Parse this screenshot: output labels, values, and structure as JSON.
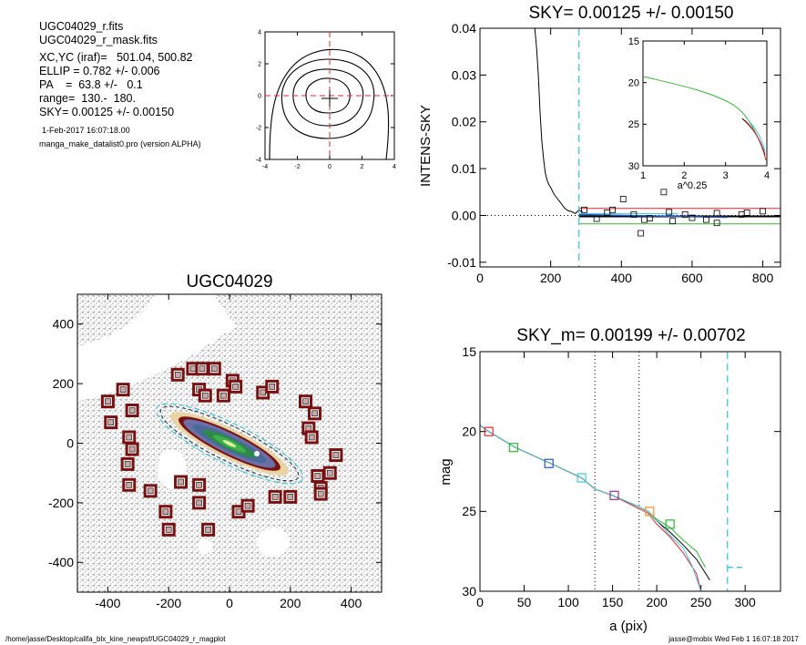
{
  "info": {
    "lines": [
      "UGC04029_r.fits",
      "UGC04029_r_mask.fits",
      "XC,YC (iraf)=   501.04, 500.82",
      "ELLIP = 0.782 +/- 0.006",
      "PA    =  63.8 +/-   0.1",
      "range=  130.-  180.",
      "SKY= 0.00125 +/- 0.00150"
    ],
    "date": "1-Feb-2017 16:07:18.00",
    "program": "manga_make_datalist0.pro (version ALPHA)"
  },
  "footer": {
    "path": "/home/jasse/Desktop/califa_blx_kine_newpsf/UGC04029_r_magplot",
    "stamp": "jasse@mobix  Wed Feb  1 16:07:18 2017"
  },
  "colors": {
    "red": "#e8262b",
    "black": "#000000",
    "green": "#2eb82e",
    "cyan": "#3fc8dc",
    "blue": "#2a55c8",
    "purple": "#9a2ea0",
    "orange": "#f08c2a",
    "dark_red": "#7a1010"
  },
  "chart_data": [
    {
      "id": "contour",
      "type": "contour",
      "xlim": [
        -4,
        4
      ],
      "ylim": [
        -4,
        4
      ],
      "xticks": [
        "-4",
        "-2",
        "0",
        "2",
        "4"
      ],
      "yticks": [
        "-4",
        "-2",
        "0",
        "2",
        "4"
      ]
    },
    {
      "id": "sky",
      "type": "line",
      "title": "SKY= 0.00125 +/- 0.00150",
      "ylabel": "INTENS-SKY",
      "xlim": [
        0,
        850
      ],
      "ylim": [
        -0.011,
        0.04
      ],
      "xticks": [
        "0",
        "200",
        "400",
        "600",
        "800"
      ],
      "yticks": [
        "-0.01",
        "0.00",
        "0.01",
        "0.02",
        "0.03",
        "0.04"
      ],
      "profile_x": [
        155,
        160,
        165,
        170,
        175,
        180,
        185,
        190,
        195,
        200,
        210,
        220,
        230,
        240,
        250,
        260,
        270,
        280,
        290
      ],
      "profile_y": [
        0.04,
        0.036,
        0.03,
        0.022,
        0.016,
        0.012,
        0.009,
        0.0075,
        0.0066,
        0.006,
        0.0045,
        0.0035,
        0.0025,
        0.0015,
        0.001,
        0.0008,
        0.0004,
        0.0012,
        0.0007
      ],
      "squares": [
        [
          295,
          0.0012
        ],
        [
          330,
          -0.0007
        ],
        [
          360,
          0.0006
        ],
        [
          375,
          0.0012
        ],
        [
          405,
          0.0035
        ],
        [
          435,
          0.0002
        ],
        [
          455,
          -0.0038
        ],
        [
          465,
          -0.0009
        ],
        [
          480,
          -0.0006
        ],
        [
          520,
          0.005
        ],
        [
          535,
          0.0007
        ],
        [
          545,
          -0.0012
        ],
        [
          580,
          0.0002
        ],
        [
          600,
          -0.0005
        ],
        [
          640,
          -0.0009
        ],
        [
          670,
          -0.0016
        ],
        [
          670,
          0.0005
        ],
        [
          740,
          0.0002
        ],
        [
          755,
          0.0006
        ],
        [
          800,
          0.0009
        ]
      ],
      "sky_range": [
        280,
        850
      ],
      "sky_level": 0.00125,
      "sky_upper": 0.0015,
      "sky_lower": -0.0018,
      "vline_x": 280,
      "inset": {
        "xlabel": "a^0.25",
        "xlim": [
          1,
          4
        ],
        "ylim": [
          15,
          30
        ],
        "xticks": [
          "1",
          "2",
          "3",
          "4"
        ],
        "yticks": [
          "15",
          "20",
          "25",
          "30"
        ]
      }
    },
    {
      "id": "image",
      "type": "image",
      "title": "UGC04029",
      "xlim": [
        -500,
        500
      ],
      "ylim": [
        -500,
        500
      ],
      "xticks": [
        "-400",
        "-200",
        "0",
        "200",
        "400"
      ],
      "yticks": [
        "-400",
        "-200",
        "0",
        "200",
        "400"
      ],
      "boxes": [
        [
          -400,
          140
        ],
        [
          -390,
          70
        ],
        [
          -350,
          180
        ],
        [
          -320,
          110
        ],
        [
          -330,
          20
        ],
        [
          -320,
          -20
        ],
        [
          -335,
          -70
        ],
        [
          -330,
          -140
        ],
        [
          -260,
          -160
        ],
        [
          -210,
          -230
        ],
        [
          -200,
          -290
        ],
        [
          -170,
          230
        ],
        [
          -160,
          -130
        ],
        [
          -120,
          250
        ],
        [
          -100,
          180
        ],
        [
          -90,
          250
        ],
        [
          -100,
          -140
        ],
        [
          -100,
          -200
        ],
        [
          -80,
          160
        ],
        [
          -50,
          250
        ],
        [
          -70,
          -290
        ],
        [
          -20,
          160
        ],
        [
          10,
          210
        ],
        [
          20,
          190
        ],
        [
          30,
          -230
        ],
        [
          60,
          -210
        ],
        [
          110,
          170
        ],
        [
          140,
          190
        ],
        [
          150,
          -180
        ],
        [
          200,
          -180
        ],
        [
          250,
          140
        ],
        [
          260,
          50
        ],
        [
          280,
          100
        ],
        [
          270,
          20
        ],
        [
          290,
          -110
        ],
        [
          300,
          -150
        ],
        [
          300,
          -170
        ],
        [
          330,
          -100
        ],
        [
          350,
          -40
        ]
      ],
      "ellipse": {
        "xc": 0,
        "yc": 0,
        "a": 250,
        "ellip": 0.782,
        "pa": 63.8
      }
    },
    {
      "id": "mag",
      "type": "line",
      "title": "SKY_m=  0.00199 +/- 0.00702",
      "xlabel": "a (pix)",
      "ylabel": "mag",
      "xlim": [
        0,
        340
      ],
      "ylim": [
        15,
        30
      ],
      "xticks": [
        "0",
        "50",
        "100",
        "150",
        "200",
        "250",
        "300"
      ],
      "yticks": [
        "15",
        "20",
        "25",
        "30"
      ],
      "range_lines": [
        130,
        180
      ],
      "vline_x": 280,
      "series": [
        {
          "color": "green",
          "x": [
            0,
            10,
            40,
            80,
            115,
            130,
            150,
            175,
            190,
            200,
            215,
            230,
            245,
            255
          ],
          "y": [
            19.6,
            20.0,
            21.0,
            22.0,
            22.9,
            23.6,
            24.0,
            24.6,
            25.0,
            25.5,
            26.0,
            26.8,
            27.5,
            28.5
          ]
        },
        {
          "color": "black",
          "x": [
            0,
            10,
            40,
            80,
            115,
            130,
            150,
            175,
            190,
            200,
            215,
            230,
            245,
            260
          ],
          "y": [
            19.6,
            20.0,
            21.0,
            22.0,
            22.9,
            23.6,
            24.0,
            24.6,
            25.0,
            25.6,
            26.3,
            27.1,
            28.0,
            29.3
          ]
        },
        {
          "color": "red",
          "x": [
            0,
            10,
            40,
            80,
            115,
            130,
            150,
            175,
            190,
            200,
            215,
            230,
            245,
            250
          ],
          "y": [
            19.6,
            20.0,
            21.0,
            22.0,
            22.9,
            23.6,
            24.0,
            24.7,
            25.1,
            25.8,
            26.6,
            27.6,
            28.9,
            30.0
          ]
        },
        {
          "color": "cyan",
          "x": [
            0,
            10,
            40,
            80,
            115,
            130,
            150,
            175,
            190,
            200,
            215,
            230,
            240,
            250
          ],
          "y": [
            19.6,
            20.0,
            21.0,
            22.0,
            22.9,
            23.6,
            24.0,
            24.6,
            25.0,
            25.6,
            26.5,
            27.3,
            28.4,
            30.0
          ]
        }
      ],
      "markers": [
        {
          "color": "red",
          "x": 10,
          "y": 20.0
        },
        {
          "color": "green",
          "x": 38,
          "y": 21.0
        },
        {
          "color": "blue",
          "x": 78,
          "y": 22.0
        },
        {
          "color": "cyan",
          "x": 115,
          "y": 22.9
        },
        {
          "color": "purple",
          "x": 152,
          "y": 24.0
        },
        {
          "color": "orange",
          "x": 192,
          "y": 25.0
        },
        {
          "color": "green",
          "x": 215,
          "y": 25.8
        }
      ],
      "sky_marker": {
        "x": [
          280,
          300
        ],
        "y": 28.5
      }
    }
  ]
}
